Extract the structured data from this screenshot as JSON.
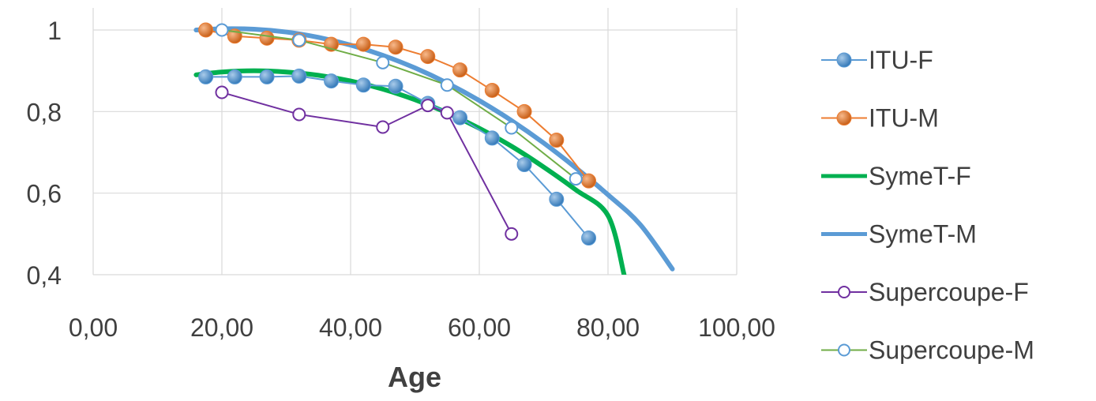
{
  "chart_data": {
    "type": "scatter",
    "title": "",
    "xlabel": "Age",
    "ylabel": "",
    "xlim": [
      0,
      100
    ],
    "ylim": [
      0.4,
      1.0
    ],
    "x_tick_labels": [
      "0,00",
      "20,00",
      "40,00",
      "60,00",
      "80,00",
      "100,00"
    ],
    "y_tick_labels": [
      "0,4",
      "0,6",
      "0,8",
      "1"
    ],
    "grid": {
      "horizontal": true,
      "vertical": true
    },
    "legend_position": "right",
    "series": [
      {
        "name": "ITU-F",
        "color": "#5B9BD5",
        "style": "line-filled-marker",
        "x": [
          17.5,
          22,
          27,
          32,
          37,
          42,
          47,
          52,
          57,
          62,
          67,
          72,
          77
        ],
        "y": [
          0.885,
          0.885,
          0.885,
          0.887,
          0.875,
          0.865,
          0.862,
          0.82,
          0.785,
          0.735,
          0.67,
          0.585,
          0.49
        ]
      },
      {
        "name": "ITU-M",
        "color": "#ED7D31",
        "style": "line-filled-marker",
        "x": [
          17.5,
          22,
          27,
          32,
          37,
          42,
          47,
          52,
          57,
          62,
          67,
          72,
          77
        ],
        "y": [
          1.0,
          0.985,
          0.98,
          0.975,
          0.965,
          0.965,
          0.958,
          0.935,
          0.902,
          0.852,
          0.8,
          0.73,
          0.63
        ]
      },
      {
        "name": "SymeT-F",
        "color": "#00B050",
        "style": "curve",
        "x": [
          16,
          20,
          25,
          30,
          35,
          40,
          45,
          50,
          55,
          60,
          65,
          70,
          75,
          80,
          82.5
        ],
        "y": [
          0.89,
          0.897,
          0.9,
          0.897,
          0.889,
          0.875,
          0.855,
          0.829,
          0.797,
          0.759,
          0.715,
          0.664,
          0.608,
          0.545,
          0.4
        ]
      },
      {
        "name": "SymeT-M",
        "color": "#5B9BD5",
        "style": "curve",
        "x": [
          16,
          20,
          25,
          30,
          35,
          40,
          45,
          50,
          55,
          60,
          65,
          70,
          75,
          80,
          85,
          90
        ],
        "y": [
          1.0,
          1.003,
          1.002,
          0.995,
          0.982,
          0.963,
          0.938,
          0.907,
          0.87,
          0.827,
          0.778,
          0.723,
          0.662,
          0.596,
          0.523,
          0.414
        ]
      },
      {
        "name": "Supercoupe-F",
        "color": "#7030A0",
        "style": "line-hollow-marker",
        "x": [
          20,
          32,
          45,
          52,
          55,
          65
        ],
        "y": [
          0.847,
          0.793,
          0.762,
          0.815,
          0.797,
          0.5
        ]
      },
      {
        "name": "Supercoupe-M",
        "color": "#70AD47",
        "marker_color": "#5B9BD5",
        "style": "line-hollow-marker",
        "x": [
          20,
          32,
          45,
          55,
          65,
          75
        ],
        "y": [
          1.0,
          0.975,
          0.92,
          0.865,
          0.76,
          0.635
        ]
      }
    ]
  }
}
